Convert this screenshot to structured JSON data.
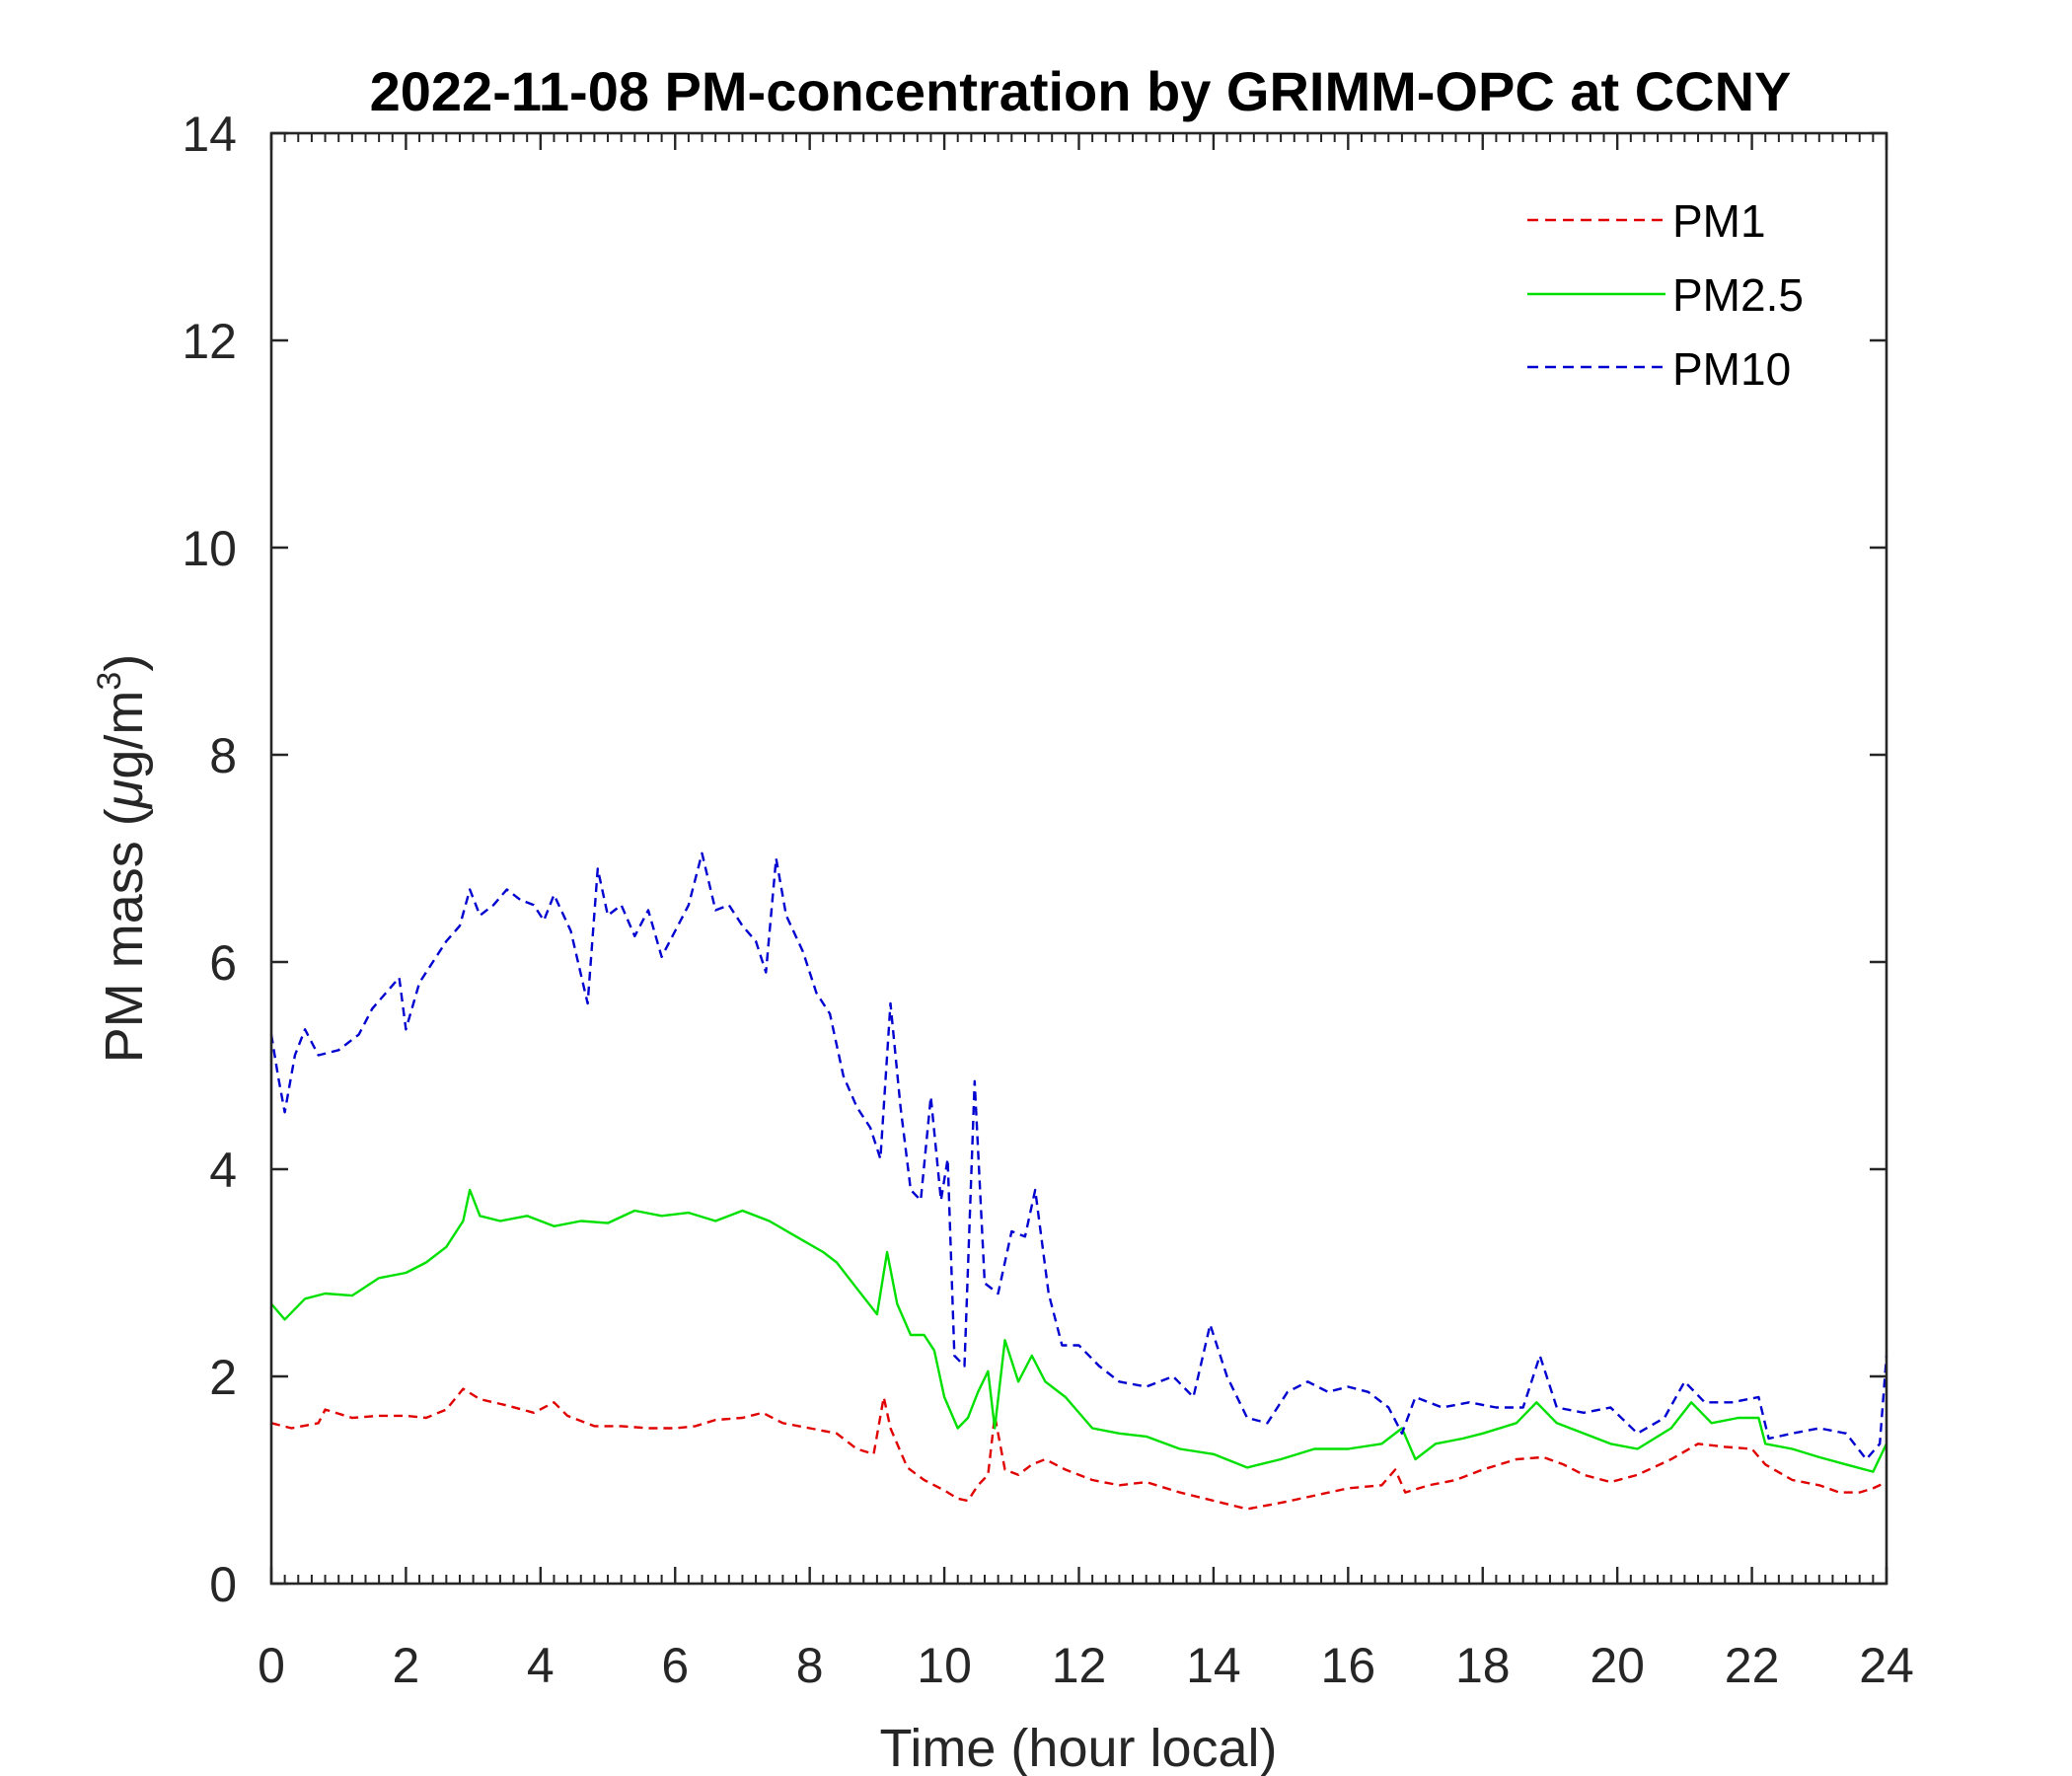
{
  "chart_data": {
    "type": "line",
    "title": "2022-11-08 PM-concentration by GRIMM-OPC at CCNY",
    "xlabel": "Time (hour local)",
    "ylabel_main": "PM mass (",
    "ylabel_mu": "μ",
    "ylabel_unit": "g/m",
    "ylabel_sup": "3",
    "ylabel_close": ")",
    "xlim": [
      0,
      24
    ],
    "ylim": [
      0,
      14
    ],
    "xticks": [
      0,
      2,
      4,
      6,
      8,
      10,
      12,
      14,
      16,
      18,
      20,
      22,
      24
    ],
    "yticks": [
      0,
      2,
      4,
      6,
      8,
      10,
      12,
      14
    ],
    "xtick_labels": [
      "0",
      "2",
      "4",
      "6",
      "8",
      "10",
      "12",
      "14",
      "16",
      "18",
      "20",
      "22",
      "24"
    ],
    "ytick_labels": [
      "0",
      "2",
      "4",
      "6",
      "8",
      "10",
      "12",
      "14"
    ],
    "legend_position": "top-right",
    "series": [
      {
        "name": "PM1",
        "color": "#e00000",
        "style": "dashed",
        "points": [
          [
            0,
            1.55
          ],
          [
            0.3,
            1.5
          ],
          [
            0.7,
            1.55
          ],
          [
            0.8,
            1.68
          ],
          [
            1.2,
            1.6
          ],
          [
            1.6,
            1.62
          ],
          [
            2,
            1.62
          ],
          [
            2.3,
            1.6
          ],
          [
            2.6,
            1.68
          ],
          [
            2.85,
            1.88
          ],
          [
            3.1,
            1.78
          ],
          [
            3.5,
            1.72
          ],
          [
            3.9,
            1.65
          ],
          [
            4.2,
            1.75
          ],
          [
            4.4,
            1.62
          ],
          [
            4.8,
            1.52
          ],
          [
            5.2,
            1.52
          ],
          [
            5.6,
            1.5
          ],
          [
            6,
            1.5
          ],
          [
            6.3,
            1.52
          ],
          [
            6.6,
            1.58
          ],
          [
            7,
            1.6
          ],
          [
            7.3,
            1.65
          ],
          [
            7.6,
            1.55
          ],
          [
            8,
            1.5
          ],
          [
            8.4,
            1.45
          ],
          [
            8.7,
            1.3
          ],
          [
            8.95,
            1.25
          ],
          [
            9.1,
            1.8
          ],
          [
            9.2,
            1.5
          ],
          [
            9.45,
            1.12
          ],
          [
            9.7,
            1.0
          ],
          [
            10,
            0.9
          ],
          [
            10.2,
            0.82
          ],
          [
            10.35,
            0.8
          ],
          [
            10.5,
            0.95
          ],
          [
            10.65,
            1.05
          ],
          [
            10.75,
            1.62
          ],
          [
            10.9,
            1.1
          ],
          [
            11.1,
            1.05
          ],
          [
            11.3,
            1.15
          ],
          [
            11.5,
            1.2
          ],
          [
            11.8,
            1.1
          ],
          [
            12.2,
            1.0
          ],
          [
            12.6,
            0.95
          ],
          [
            13,
            0.98
          ],
          [
            13.5,
            0.88
          ],
          [
            14,
            0.8
          ],
          [
            14.5,
            0.72
          ],
          [
            15,
            0.78
          ],
          [
            15.5,
            0.85
          ],
          [
            16,
            0.92
          ],
          [
            16.5,
            0.95
          ],
          [
            16.7,
            1.1
          ],
          [
            16.85,
            0.88
          ],
          [
            17.2,
            0.95
          ],
          [
            17.6,
            1.0
          ],
          [
            18,
            1.1
          ],
          [
            18.5,
            1.2
          ],
          [
            18.9,
            1.22
          ],
          [
            19.2,
            1.15
          ],
          [
            19.5,
            1.05
          ],
          [
            19.9,
            0.98
          ],
          [
            20.3,
            1.05
          ],
          [
            20.8,
            1.2
          ],
          [
            21.2,
            1.35
          ],
          [
            21.6,
            1.32
          ],
          [
            22,
            1.3
          ],
          [
            22.2,
            1.15
          ],
          [
            22.6,
            1.0
          ],
          [
            23,
            0.95
          ],
          [
            23.3,
            0.88
          ],
          [
            23.6,
            0.88
          ],
          [
            23.8,
            0.92
          ],
          [
            24,
            0.98
          ]
        ]
      },
      {
        "name": "PM2.5",
        "color": "#00e000",
        "style": "solid",
        "points": [
          [
            0,
            2.7
          ],
          [
            0.2,
            2.55
          ],
          [
            0.5,
            2.75
          ],
          [
            0.8,
            2.8
          ],
          [
            1.2,
            2.78
          ],
          [
            1.6,
            2.95
          ],
          [
            2,
            3.0
          ],
          [
            2.3,
            3.1
          ],
          [
            2.6,
            3.25
          ],
          [
            2.85,
            3.5
          ],
          [
            2.95,
            3.8
          ],
          [
            3.1,
            3.55
          ],
          [
            3.4,
            3.5
          ],
          [
            3.8,
            3.55
          ],
          [
            4.2,
            3.45
          ],
          [
            4.6,
            3.5
          ],
          [
            5,
            3.48
          ],
          [
            5.4,
            3.6
          ],
          [
            5.8,
            3.55
          ],
          [
            6.2,
            3.58
          ],
          [
            6.6,
            3.5
          ],
          [
            7,
            3.6
          ],
          [
            7.4,
            3.5
          ],
          [
            7.8,
            3.35
          ],
          [
            8.2,
            3.2
          ],
          [
            8.4,
            3.1
          ],
          [
            8.7,
            2.85
          ],
          [
            9.0,
            2.6
          ],
          [
            9.15,
            3.2
          ],
          [
            9.3,
            2.7
          ],
          [
            9.5,
            2.4
          ],
          [
            9.7,
            2.4
          ],
          [
            9.85,
            2.25
          ],
          [
            10,
            1.8
          ],
          [
            10.2,
            1.5
          ],
          [
            10.35,
            1.6
          ],
          [
            10.5,
            1.85
          ],
          [
            10.65,
            2.05
          ],
          [
            10.75,
            1.5
          ],
          [
            10.9,
            2.35
          ],
          [
            11.1,
            1.95
          ],
          [
            11.3,
            2.2
          ],
          [
            11.5,
            1.95
          ],
          [
            11.8,
            1.8
          ],
          [
            12.2,
            1.5
          ],
          [
            12.6,
            1.45
          ],
          [
            13,
            1.42
          ],
          [
            13.5,
            1.3
          ],
          [
            14,
            1.25
          ],
          [
            14.5,
            1.12
          ],
          [
            15,
            1.2
          ],
          [
            15.5,
            1.3
          ],
          [
            16,
            1.3
          ],
          [
            16.5,
            1.35
          ],
          [
            16.8,
            1.5
          ],
          [
            17,
            1.2
          ],
          [
            17.3,
            1.35
          ],
          [
            17.7,
            1.4
          ],
          [
            18,
            1.45
          ],
          [
            18.5,
            1.55
          ],
          [
            18.8,
            1.75
          ],
          [
            19.1,
            1.55
          ],
          [
            19.5,
            1.45
          ],
          [
            19.9,
            1.35
          ],
          [
            20.3,
            1.3
          ],
          [
            20.8,
            1.5
          ],
          [
            21.1,
            1.75
          ],
          [
            21.4,
            1.55
          ],
          [
            21.8,
            1.6
          ],
          [
            22.1,
            1.6
          ],
          [
            22.2,
            1.35
          ],
          [
            22.6,
            1.3
          ],
          [
            23,
            1.22
          ],
          [
            23.4,
            1.15
          ],
          [
            23.8,
            1.08
          ],
          [
            24,
            1.35
          ]
        ]
      },
      {
        "name": "PM10",
        "color": "#0000d0",
        "style": "dashed",
        "points": [
          [
            0,
            5.3
          ],
          [
            0.1,
            4.9
          ],
          [
            0.2,
            4.55
          ],
          [
            0.35,
            5.1
          ],
          [
            0.5,
            5.35
          ],
          [
            0.7,
            5.1
          ],
          [
            1,
            5.15
          ],
          [
            1.3,
            5.3
          ],
          [
            1.5,
            5.55
          ],
          [
            1.7,
            5.7
          ],
          [
            1.9,
            5.85
          ],
          [
            2,
            5.35
          ],
          [
            2.2,
            5.8
          ],
          [
            2.4,
            6.0
          ],
          [
            2.6,
            6.2
          ],
          [
            2.8,
            6.35
          ],
          [
            2.95,
            6.7
          ],
          [
            3.1,
            6.45
          ],
          [
            3.3,
            6.55
          ],
          [
            3.5,
            6.7
          ],
          [
            3.7,
            6.6
          ],
          [
            3.9,
            6.55
          ],
          [
            4.05,
            6.4
          ],
          [
            4.2,
            6.65
          ],
          [
            4.45,
            6.3
          ],
          [
            4.7,
            5.6
          ],
          [
            4.85,
            6.9
          ],
          [
            5,
            6.45
          ],
          [
            5.2,
            6.55
          ],
          [
            5.4,
            6.25
          ],
          [
            5.6,
            6.5
          ],
          [
            5.8,
            6.05
          ],
          [
            6,
            6.3
          ],
          [
            6.2,
            6.55
          ],
          [
            6.4,
            7.05
          ],
          [
            6.6,
            6.5
          ],
          [
            6.8,
            6.55
          ],
          [
            7,
            6.35
          ],
          [
            7.2,
            6.2
          ],
          [
            7.35,
            5.9
          ],
          [
            7.5,
            7.0
          ],
          [
            7.65,
            6.45
          ],
          [
            7.9,
            6.1
          ],
          [
            8.1,
            5.7
          ],
          [
            8.3,
            5.5
          ],
          [
            8.5,
            4.9
          ],
          [
            8.7,
            4.6
          ],
          [
            8.9,
            4.4
          ],
          [
            9.05,
            4.1
          ],
          [
            9.2,
            5.6
          ],
          [
            9.35,
            4.6
          ],
          [
            9.5,
            3.8
          ],
          [
            9.65,
            3.7
          ],
          [
            9.8,
            4.7
          ],
          [
            9.95,
            3.7
          ],
          [
            10.05,
            4.1
          ],
          [
            10.15,
            2.2
          ],
          [
            10.3,
            2.1
          ],
          [
            10.45,
            4.85
          ],
          [
            10.6,
            2.9
          ],
          [
            10.8,
            2.8
          ],
          [
            11,
            3.4
          ],
          [
            11.2,
            3.35
          ],
          [
            11.35,
            3.8
          ],
          [
            11.55,
            2.8
          ],
          [
            11.75,
            2.3
          ],
          [
            12,
            2.3
          ],
          [
            12.3,
            2.1
          ],
          [
            12.6,
            1.95
          ],
          [
            13,
            1.9
          ],
          [
            13.4,
            2.0
          ],
          [
            13.7,
            1.8
          ],
          [
            13.95,
            2.5
          ],
          [
            14.2,
            2.0
          ],
          [
            14.5,
            1.6
          ],
          [
            14.8,
            1.55
          ],
          [
            15.1,
            1.85
          ],
          [
            15.4,
            1.95
          ],
          [
            15.7,
            1.85
          ],
          [
            16,
            1.9
          ],
          [
            16.3,
            1.85
          ],
          [
            16.6,
            1.7
          ],
          [
            16.8,
            1.45
          ],
          [
            17,
            1.8
          ],
          [
            17.4,
            1.7
          ],
          [
            17.8,
            1.75
          ],
          [
            18.2,
            1.7
          ],
          [
            18.6,
            1.7
          ],
          [
            18.85,
            2.2
          ],
          [
            19.1,
            1.7
          ],
          [
            19.5,
            1.65
          ],
          [
            19.9,
            1.7
          ],
          [
            20.3,
            1.45
          ],
          [
            20.7,
            1.6
          ],
          [
            21,
            1.95
          ],
          [
            21.3,
            1.75
          ],
          [
            21.7,
            1.75
          ],
          [
            22.1,
            1.8
          ],
          [
            22.25,
            1.4
          ],
          [
            22.6,
            1.45
          ],
          [
            23,
            1.5
          ],
          [
            23.4,
            1.45
          ],
          [
            23.7,
            1.2
          ],
          [
            23.9,
            1.35
          ],
          [
            24,
            2.2
          ]
        ]
      }
    ]
  }
}
